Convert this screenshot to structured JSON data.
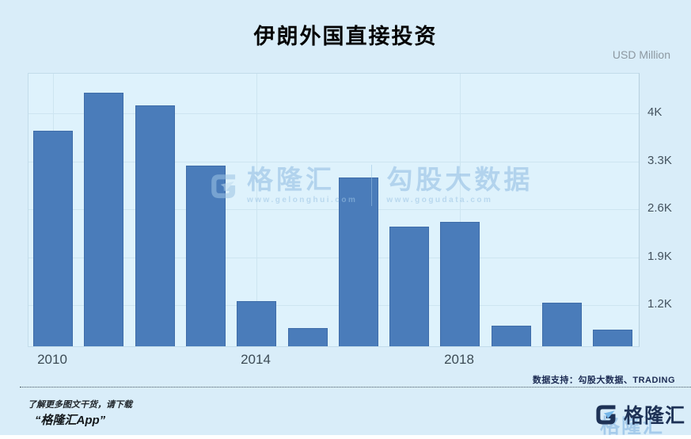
{
  "title": "伊朗外国直接投资",
  "unit_label": "USD Million",
  "chart_data": {
    "type": "bar",
    "title": "伊朗外国直接投资",
    "ylabel": "USD Million",
    "categories": [
      "2010",
      "2011",
      "2012",
      "2013",
      "2014",
      "2015",
      "2016",
      "2017",
      "2018",
      "2019",
      "2020",
      "2021"
    ],
    "values": [
      3720,
      4280,
      4090,
      3210,
      1230,
      840,
      3040,
      2320,
      2390,
      880,
      1210,
      820
    ],
    "ylim": [
      575,
      4580
    ],
    "yticks": [
      {
        "value": 1200,
        "label": "1.2K"
      },
      {
        "value": 1900,
        "label": "1.9K"
      },
      {
        "value": 2600,
        "label": "2.6K"
      },
      {
        "value": 3300,
        "label": "3.3K"
      },
      {
        "value": 4000,
        "label": "4K"
      }
    ],
    "xticks": [
      {
        "index": 0,
        "label": "2010"
      },
      {
        "index": 4,
        "label": "2014"
      },
      {
        "index": 8,
        "label": "2018"
      }
    ],
    "bar_color": "#4a7cba",
    "grid": true,
    "legend_position": "none"
  },
  "watermark": {
    "brand": "格隆汇",
    "brand_url": "www.gelonghui.com",
    "datasource": "勾股大数据",
    "datasource_url": "www.gogudata.com"
  },
  "footer": {
    "source_note": "数据支持：勾股大数据、TRADING",
    "promo_line1": "了解更多图文干货，请下载",
    "promo_line2": "“格隆汇App”",
    "logo_text": "格隆汇",
    "ghost_logo_text": "格隆汇"
  },
  "colors": {
    "background": "#d9edf9",
    "plot_background": "#def2fc",
    "bar": "#4a7cba",
    "gridline": "#cde5f1",
    "logo_navy": "#1e3256",
    "logo_accent": "#74b6e8",
    "watermark_blue": "#9cc4e4"
  }
}
